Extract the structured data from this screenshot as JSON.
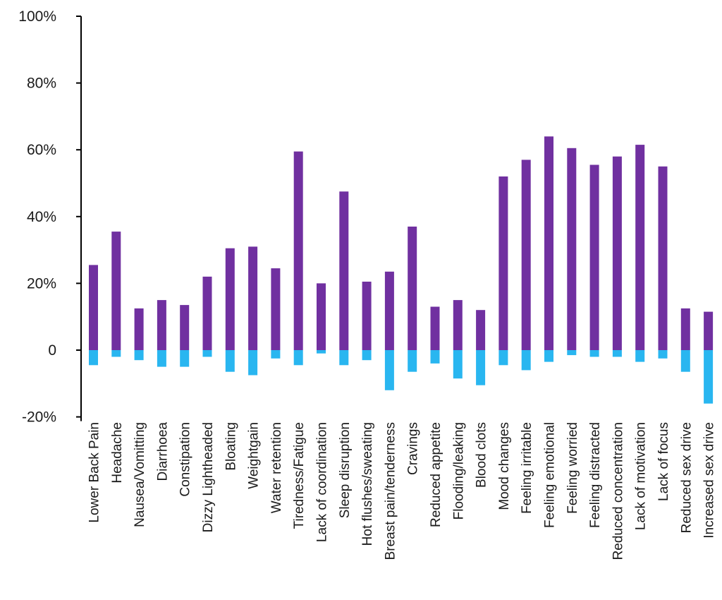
{
  "chart_data": {
    "type": "bar",
    "stacked": "diverging",
    "categories": [
      "Lower Back Pain",
      "Headache",
      "Nausea/Vomitting",
      "Diarrhoea",
      "Constipation",
      "Dizzy Lightheaded",
      "Bloating",
      "Weightgain",
      "Water retention",
      "Tiredness/Fatigue",
      "Lack of coordination",
      "Sleep disruption",
      "Hot flushes/sweating",
      "Breast pain/tenderness",
      "Cravings",
      "Reduced appetite",
      "Flooding/leaking",
      "Blood clots",
      "Mood changes",
      "Feeling irritable",
      "Feeling emotional",
      "Feeling worried",
      "Feeling distracted",
      "Reduced concentration",
      "Lack of motivation",
      "Lack of focus",
      "Reduced sex drive",
      "Increased sex drive"
    ],
    "series": [
      {
        "color": "#7030a0",
        "values": [
          25.5,
          35.5,
          12.5,
          15,
          13.5,
          22,
          30.5,
          31,
          24.5,
          59.5,
          20,
          47.5,
          20.5,
          23.5,
          37,
          13,
          15,
          12,
          52,
          57,
          64,
          60.5,
          55.5,
          58,
          61.5,
          55,
          12.5,
          11.5
        ]
      },
      {
        "color": "#29b6f0",
        "values": [
          -4.5,
          -2,
          -3,
          -5,
          -5,
          -2,
          -6.5,
          -7.5,
          -2.5,
          -4.5,
          -1,
          -4.5,
          -3,
          -12,
          -6.5,
          -4,
          -8.5,
          -10.5,
          -4.5,
          -6,
          -3.5,
          -1.5,
          -2,
          -2,
          -3.5,
          -2.5,
          -6.5,
          -16
        ]
      }
    ],
    "yticks": [
      "100%",
      "80%",
      "60%",
      "40%",
      "20%",
      "0",
      "-20%"
    ],
    "ytick_values": [
      100,
      80,
      60,
      40,
      20,
      0,
      -20
    ],
    "ylim": [
      -20,
      100
    ],
    "title": "",
    "xlabel": "",
    "ylabel": "",
    "grid": false,
    "legend": false
  }
}
